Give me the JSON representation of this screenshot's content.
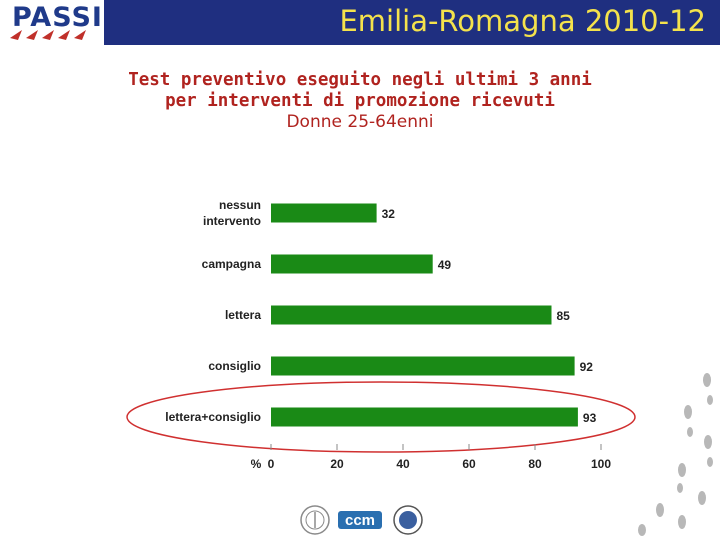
{
  "header": {
    "title": "Emilia-Romagna 2010-12",
    "logo_text": "PASSI",
    "logo_icon": "passi-logo-icon",
    "band_color": "#1f2f80",
    "title_color": "#f4e24c"
  },
  "chart_data": {
    "type": "bar",
    "orientation": "horizontal",
    "title": "Test preventivo eseguito negli ultimi 3 anni",
    "title_line2": "per interventi di promozione ricevuti",
    "subtitle": "Donne 25-64enni",
    "categories": [
      [
        "nessun",
        "intervento"
      ],
      [
        "campagna"
      ],
      [
        "lettera"
      ],
      [
        "consiglio"
      ],
      [
        "lettera+consiglio"
      ]
    ],
    "values": [
      32,
      49,
      85,
      92,
      93
    ],
    "value_labels": [
      "32",
      "49",
      "85",
      "92",
      "93"
    ],
    "xlim": [
      0,
      100
    ],
    "xticks": [
      0,
      20,
      40,
      60,
      80,
      100
    ],
    "xtick_labels": [
      "0",
      "20",
      "40",
      "60",
      "80",
      "100"
    ],
    "xlabel": "%",
    "bar_color": "#1a8a16",
    "highlight_color": "#d03030",
    "highlighted_category_index": 4,
    "grid": false
  },
  "footer": {
    "logos": [
      "iss-seal-icon",
      "ccm-logo-icon",
      "gisps-logo-icon"
    ],
    "decoration": "footprints-icon"
  }
}
